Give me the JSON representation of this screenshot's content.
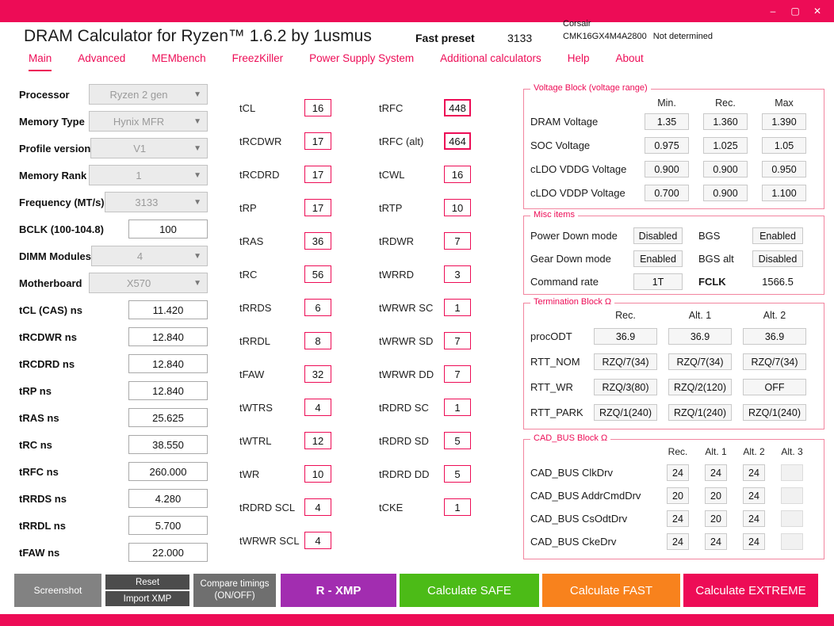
{
  "window": {
    "title": "DRAM Calculator for Ryzen™ 1.6.2 by 1usmus",
    "preset_label": "Fast preset",
    "preset_value": "3133",
    "kit_line1": "Corsair",
    "kit_model": "CMK16GX4M4A2800",
    "kit_status": "Not determined"
  },
  "icons": {
    "minimize": "–",
    "maximize": "▢",
    "close": "✕",
    "dropdown": "▼"
  },
  "colors": {
    "accent": "#ed0c56",
    "xmp_purple": "#a22db0",
    "safe_green": "#4cbb17",
    "fast_orange": "#f8821d",
    "gray_button": "#828282",
    "dark_gray_button": "#4c4c4c"
  },
  "tabs": [
    {
      "label": "Main",
      "active": true
    },
    {
      "label": "Advanced"
    },
    {
      "label": "MEMbench"
    },
    {
      "label": "FreezKiller"
    },
    {
      "label": "Power Supply System"
    },
    {
      "label": "Additional calculators"
    },
    {
      "label": "Help"
    },
    {
      "label": "About"
    }
  ],
  "left_panel": {
    "rows": [
      {
        "label": "Processor",
        "value": "Ryzen 2 gen",
        "control": "select"
      },
      {
        "label": "Memory Type",
        "value": "Hynix MFR",
        "control": "select"
      },
      {
        "label": "Profile version",
        "value": "V1",
        "control": "select"
      },
      {
        "label": "Memory Rank",
        "value": "1",
        "control": "select"
      },
      {
        "label": "Frequency (MT/s)",
        "value": "3133",
        "control": "select"
      },
      {
        "label": "BCLK (100-104.8)",
        "value": "100",
        "control": "input"
      },
      {
        "label": "DIMM Modules",
        "value": "4",
        "control": "select"
      },
      {
        "label": "Motherboard",
        "value": "X570",
        "control": "select"
      },
      {
        "label": "tCL (CAS) ns",
        "value": "11.420",
        "control": "input"
      },
      {
        "label": "tRCDWR ns",
        "value": "12.840",
        "control": "input"
      },
      {
        "label": "tRCDRD ns",
        "value": "12.840",
        "control": "input"
      },
      {
        "label": "tRP ns",
        "value": "12.840",
        "control": "input"
      },
      {
        "label": "tRAS ns",
        "value": "25.625",
        "control": "input"
      },
      {
        "label": "tRC ns",
        "value": "38.550",
        "control": "input"
      },
      {
        "label": "tRFC ns",
        "value": "260.000",
        "control": "input"
      },
      {
        "label": "tRRDS ns",
        "value": "4.280",
        "control": "input"
      },
      {
        "label": "tRRDL ns",
        "value": "5.700",
        "control": "input"
      },
      {
        "label": "tFAW ns",
        "value": "22.000",
        "control": "input"
      }
    ]
  },
  "timings_col1": [
    {
      "label": "tCL",
      "value": "16"
    },
    {
      "label": "tRCDWR",
      "value": "17"
    },
    {
      "label": "tRCDRD",
      "value": "17"
    },
    {
      "label": "tRP",
      "value": "17"
    },
    {
      "label": "tRAS",
      "value": "36"
    },
    {
      "label": "tRC",
      "value": "56"
    },
    {
      "label": "tRRDS",
      "value": "6"
    },
    {
      "label": "tRRDL",
      "value": "8"
    },
    {
      "label": "tFAW",
      "value": "32"
    },
    {
      "label": "tWTRS",
      "value": "4"
    },
    {
      "label": "tWTRL",
      "value": "12"
    },
    {
      "label": "tWR",
      "value": "10"
    },
    {
      "label": "tRDRD SCL",
      "value": "4"
    },
    {
      "label": "tWRWR SCL",
      "value": "4"
    }
  ],
  "timings_col2": [
    {
      "label": "tRFC",
      "value": "448"
    },
    {
      "label": "tRFC (alt)",
      "value": "464"
    },
    {
      "label": "tCWL",
      "value": "16"
    },
    {
      "label": "tRTP",
      "value": "10"
    },
    {
      "label": "tRDWR",
      "value": "7"
    },
    {
      "label": "tWRRD",
      "value": "3"
    },
    {
      "label": "tWRWR SC",
      "value": "1"
    },
    {
      "label": "tWRWR SD",
      "value": "7"
    },
    {
      "label": "tWRWR DD",
      "value": "7"
    },
    {
      "label": "tRDRD SC",
      "value": "1"
    },
    {
      "label": "tRDRD SD",
      "value": "5"
    },
    {
      "label": "tRDRD DD",
      "value": "5"
    },
    {
      "label": "tCKE",
      "value": "1"
    }
  ],
  "voltage_block": {
    "title": "Voltage Block (voltage range)",
    "headers": [
      "Min.",
      "Rec.",
      "Max"
    ],
    "rows": [
      {
        "label": "DRAM Voltage",
        "values": [
          "1.35",
          "1.360",
          "1.390"
        ]
      },
      {
        "label": "SOC Voltage",
        "values": [
          "0.975",
          "1.025",
          "1.05"
        ]
      },
      {
        "label": "cLDO VDDG Voltage",
        "values": [
          "0.900",
          "0.900",
          "0.950"
        ]
      },
      {
        "label": "cLDO VDDP Voltage",
        "values": [
          "0.700",
          "0.900",
          "1.100"
        ]
      }
    ]
  },
  "misc_items": {
    "title": "Misc items",
    "rows": [
      {
        "label1": "Power Down mode",
        "value1": "Disabled",
        "label2": "BGS",
        "value2": "Enabled"
      },
      {
        "label1": "Gear Down mode",
        "value1": "Enabled",
        "label2": "BGS alt",
        "value2": "Disabled"
      },
      {
        "label1": "Command rate",
        "value1": "1T",
        "label2": "FCLK",
        "value2": "1566.5"
      }
    ]
  },
  "termination_block": {
    "title": "Termination Block Ω",
    "headers": [
      "Rec.",
      "Alt. 1",
      "Alt. 2"
    ],
    "rows": [
      {
        "label": "procODT",
        "values": [
          "36.9",
          "36.9",
          "36.9"
        ]
      },
      {
        "label": "RTT_NOM",
        "values": [
          "RZQ/7(34)",
          "RZQ/7(34)",
          "RZQ/7(34)"
        ]
      },
      {
        "label": "RTT_WR",
        "values": [
          "RZQ/3(80)",
          "RZQ/2(120)",
          "OFF"
        ]
      },
      {
        "label": "RTT_PARK",
        "values": [
          "RZQ/1(240)",
          "RZQ/1(240)",
          "RZQ/1(240)"
        ]
      }
    ]
  },
  "cad_bus_block": {
    "title": "CAD_BUS Block Ω",
    "headers": [
      "Rec.",
      "Alt. 1",
      "Alt. 2",
      "Alt. 3"
    ],
    "rows": [
      {
        "label": "CAD_BUS ClkDrv",
        "values": [
          "24",
          "24",
          "24",
          ""
        ]
      },
      {
        "label": "CAD_BUS AddrCmdDrv",
        "values": [
          "20",
          "20",
          "24",
          ""
        ]
      },
      {
        "label": "CAD_BUS CsOdtDrv",
        "values": [
          "24",
          "20",
          "24",
          ""
        ]
      },
      {
        "label": "CAD_BUS CkeDrv",
        "values": [
          "24",
          "24",
          "24",
          ""
        ]
      }
    ]
  },
  "footer": {
    "screenshot": "Screenshot",
    "reset": "Reset",
    "import_xmp": "Import XMP",
    "compare_line1": "Compare timings",
    "compare_line2": "(ON/OFF)",
    "r_xmp": "R - XMP",
    "calc_safe": "Calculate SAFE",
    "calc_fast": "Calculate FAST",
    "calc_extreme": "Calculate EXTREME"
  }
}
